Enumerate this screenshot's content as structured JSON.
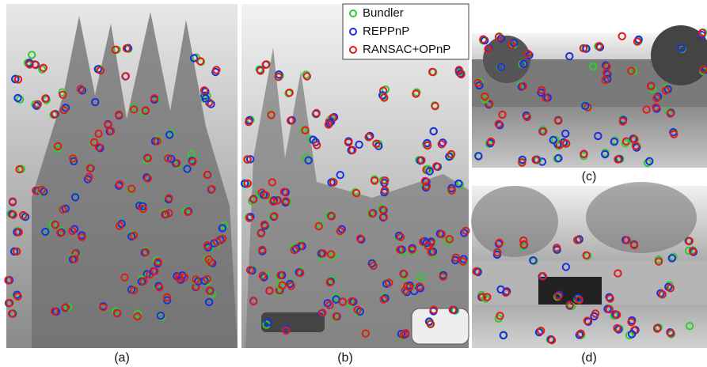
{
  "legend": {
    "items": [
      {
        "label": "Bundler",
        "color": "#2ecc2e"
      },
      {
        "label": "REPPnP",
        "color": "#1a2ee0"
      },
      {
        "label": "RANSAC+OPnP",
        "color": "#e01a1a"
      }
    ]
  },
  "panels": [
    {
      "label": "(a)"
    },
    {
      "label": "(b)"
    },
    {
      "label": "(c)"
    },
    {
      "label": "(d)"
    }
  ]
}
